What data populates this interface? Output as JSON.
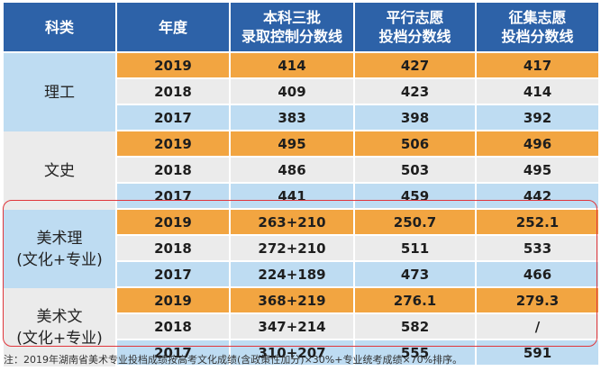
{
  "header": {
    "col1": "科类",
    "col2": "年度",
    "col3_line1": "本科三批",
    "col3_line2": "录取控制分数线",
    "col4_line1": "平行志愿",
    "col4_line2": "投档分数线",
    "col5_line1": "征集志愿",
    "col5_line2": "投档分数线"
  },
  "groups": [
    {
      "label_line1": "理工",
      "label_line2": "",
      "rows": [
        {
          "year": "2019",
          "control": "414",
          "parallel": "427",
          "collect": "417"
        },
        {
          "year": "2018",
          "control": "409",
          "parallel": "423",
          "collect": "414"
        },
        {
          "year": "2017",
          "control": "383",
          "parallel": "398",
          "collect": "392"
        }
      ]
    },
    {
      "label_line1": "文史",
      "label_line2": "",
      "rows": [
        {
          "year": "2019",
          "control": "495",
          "parallel": "506",
          "collect": "496"
        },
        {
          "year": "2018",
          "control": "486",
          "parallel": "503",
          "collect": "495"
        },
        {
          "year": "2017",
          "control": "441",
          "parallel": "459",
          "collect": "442"
        }
      ]
    },
    {
      "label_line1": "美术理",
      "label_line2": "(文化+专业)",
      "rows": [
        {
          "year": "2019",
          "control": "263+210",
          "parallel": "250.7",
          "collect": "252.1"
        },
        {
          "year": "2018",
          "control": "272+210",
          "parallel": "511",
          "collect": "533"
        },
        {
          "year": "2017",
          "control": "224+189",
          "parallel": "473",
          "collect": "466"
        }
      ]
    },
    {
      "label_line1": "美术文",
      "label_line2": "(文化+专业)",
      "rows": [
        {
          "year": "2019",
          "control": "368+219",
          "parallel": "276.1",
          "collect": "279.3"
        },
        {
          "year": "2018",
          "control": "347+214",
          "parallel": "582",
          "collect": "/"
        },
        {
          "year": "2017",
          "control": "310+207",
          "parallel": "555",
          "collect": "591"
        }
      ]
    }
  ],
  "note": "注：2019年湖南省美术专业投档成绩按高考文化成绩(含政策性加分)×30%+专业统考成绩×70%排序。",
  "colors": {
    "header": "#2d62a8",
    "row_2019": "#f2a541",
    "row_2018": "#ebebeb",
    "row_2017": "#bedcf2",
    "highlight_border": "#e0363b"
  }
}
